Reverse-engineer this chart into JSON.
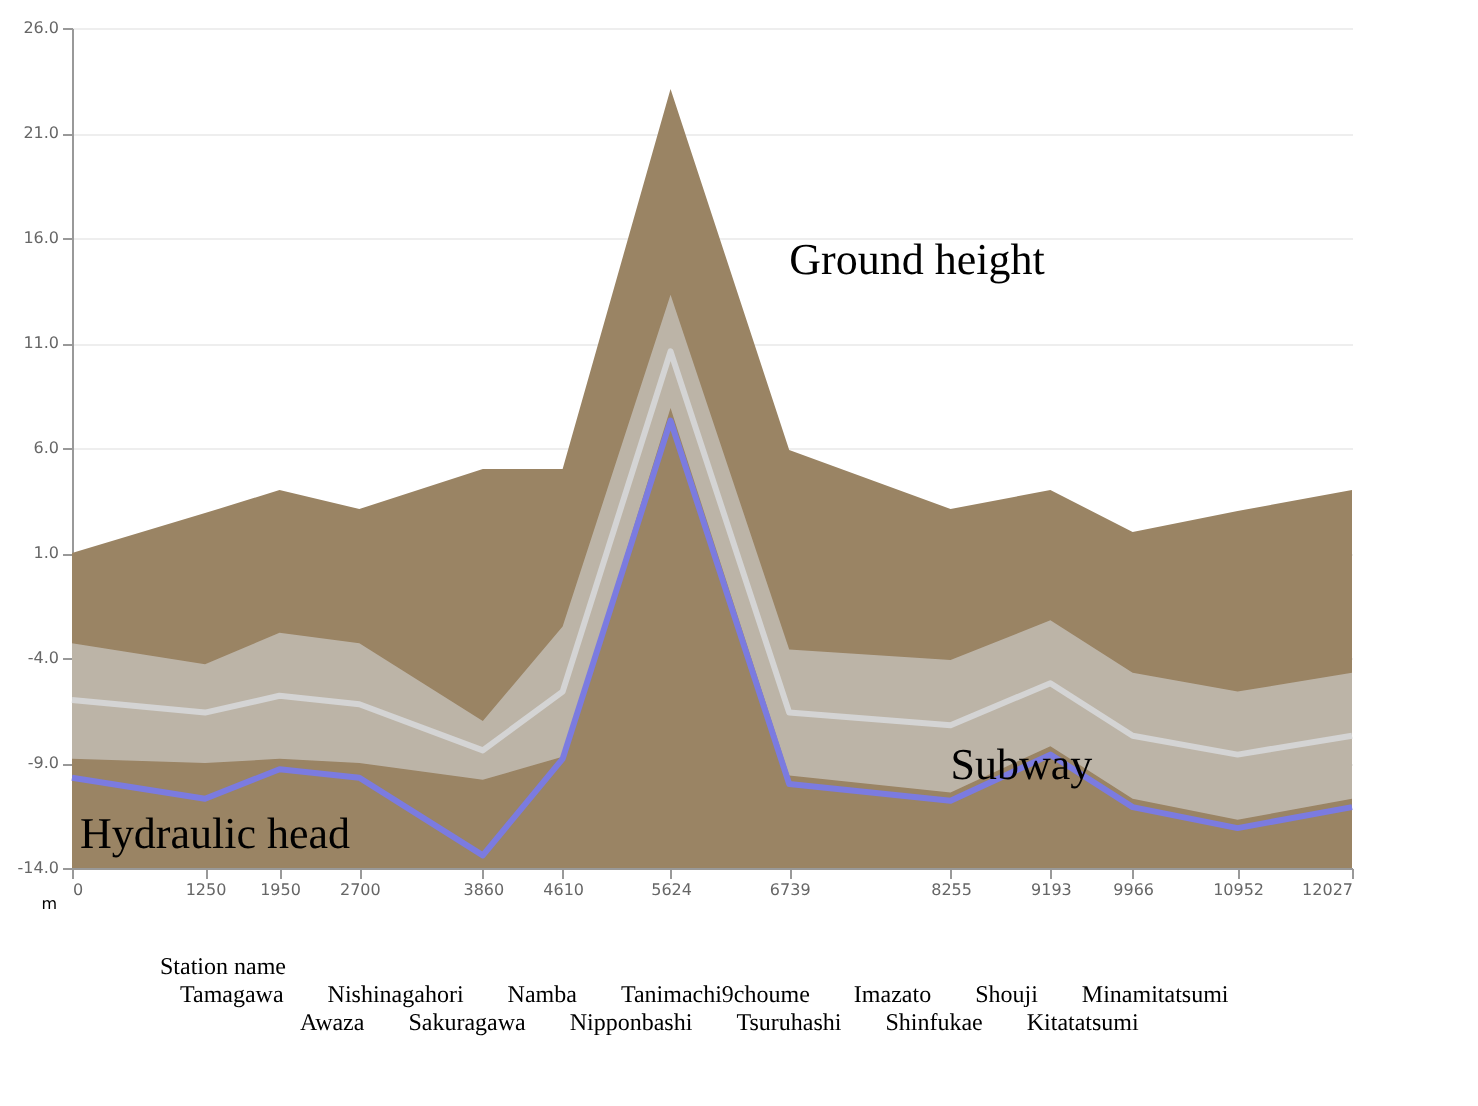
{
  "chart_data": {
    "type": "area",
    "xlabel": "m",
    "x": [
      0,
      1250,
      1950,
      2700,
      3860,
      4610,
      5624,
      6739,
      8255,
      9193,
      9966,
      10952,
      12027
    ],
    "xlim": [
      0,
      12027
    ],
    "xticks": [
      0,
      1250,
      1950,
      2700,
      3860,
      4610,
      5624,
      6739,
      8255,
      9193,
      9966,
      10952,
      12027
    ],
    "ylim": [
      -14,
      26
    ],
    "yticks": [
      {
        "value": -14,
        "label": "-14.0"
      },
      {
        "value": -9,
        "label": "-9.0"
      },
      {
        "value": -4,
        "label": "-4.0"
      },
      {
        "value": 1,
        "label": "1.0"
      },
      {
        "value": 6,
        "label": "6.0"
      },
      {
        "value": 11,
        "label": "11.0"
      },
      {
        "value": 16,
        "label": "16.0"
      },
      {
        "value": 21,
        "label": "21.0"
      },
      {
        "value": 26,
        "label": "26.0"
      }
    ],
    "grid": "y",
    "bands": [
      {
        "axis": "y",
        "from": -14,
        "to": 0,
        "color": "#9a8464"
      }
    ],
    "series": [
      {
        "name": "Ground height",
        "color": "#9a8464",
        "values": [
          1.0,
          2.9,
          4.0,
          3.1,
          5.0,
          5.0,
          23.1,
          5.9,
          3.1,
          4.0,
          2.0,
          3.0,
          4.0
        ]
      },
      {
        "name": "Subway",
        "type": "line",
        "color": "#d4d4d4",
        "values": [
          -6.0,
          -6.6,
          -5.8,
          -6.2,
          -8.4,
          -5.6,
          10.6,
          -6.6,
          -7.2,
          -5.2,
          -7.7,
          -8.6,
          -7.7
        ],
        "upper": [
          -3.3,
          -4.3,
          -2.8,
          -3.3,
          -7.0,
          -2.5,
          13.3,
          -3.6,
          -4.1,
          -2.2,
          -4.7,
          -5.6,
          -4.7
        ],
        "lower": [
          -8.8,
          -9.0,
          -8.8,
          -9.0,
          -9.8,
          -8.7,
          7.9,
          -9.6,
          -10.4,
          -8.2,
          -10.7,
          -11.7,
          -10.7
        ]
      },
      {
        "name": "Hydraulic head",
        "type": "line",
        "color": "#7b7be0",
        "values": [
          -9.7,
          -10.7,
          -9.3,
          -9.7,
          -13.4,
          -8.8,
          7.3,
          -10.0,
          -10.8,
          -8.6,
          -11.1,
          -12.1,
          -11.1
        ]
      }
    ],
    "annotations": [
      "Station name",
      "Tamagawa",
      "Awaza",
      "Nishinagahori",
      "Sakuragawa",
      "Namba",
      "Nipponbashi",
      "Tanimachi9choume",
      "Tsuruhashi",
      "Imazato",
      "Shinfukae",
      "Shouji",
      "Kitatatsumi",
      "Minamitatsumi"
    ]
  }
}
